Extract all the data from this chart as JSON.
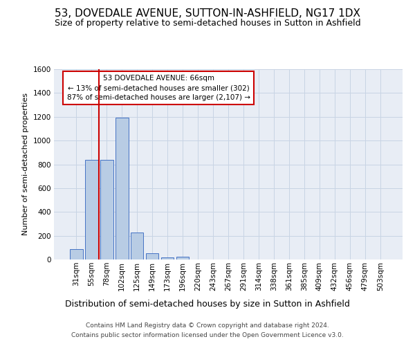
{
  "title": "53, DOVEDALE AVENUE, SUTTON-IN-ASHFIELD, NG17 1DX",
  "subtitle": "Size of property relative to semi-detached houses in Sutton in Ashfield",
  "xlabel": "Distribution of semi-detached houses by size in Sutton in Ashfield",
  "ylabel": "Number of semi-detached properties",
  "footer_line1": "Contains HM Land Registry data © Crown copyright and database right 2024.",
  "footer_line2": "Contains public sector information licensed under the Open Government Licence v3.0.",
  "annotation_title": "53 DOVEDALE AVENUE: 66sqm",
  "annotation_line1": "← 13% of semi-detached houses are smaller (302)",
  "annotation_line2": "87% of semi-detached houses are larger (2,107) →",
  "categories": [
    "31sqm",
    "55sqm",
    "78sqm",
    "102sqm",
    "125sqm",
    "149sqm",
    "173sqm",
    "196sqm",
    "220sqm",
    "243sqm",
    "267sqm",
    "291sqm",
    "314sqm",
    "338sqm",
    "361sqm",
    "385sqm",
    "409sqm",
    "432sqm",
    "456sqm",
    "479sqm",
    "503sqm"
  ],
  "values": [
    90,
    840,
    840,
    1190,
    225,
    55,
    20,
    25,
    0,
    0,
    0,
    0,
    0,
    0,
    0,
    0,
    0,
    0,
    0,
    0,
    0
  ],
  "bar_color": "#b8cce4",
  "bar_edge_color": "#4472c4",
  "grid_color": "#c8d4e4",
  "bg_color": "#e8edf5",
  "property_line_x": 1.5,
  "property_line_color": "#cc0000",
  "ylim": [
    0,
    1600
  ],
  "yticks": [
    0,
    200,
    400,
    600,
    800,
    1000,
    1200,
    1400,
    1600
  ],
  "title_fontsize": 11,
  "subtitle_fontsize": 9,
  "ylabel_fontsize": 8,
  "tick_fontsize": 7.5,
  "annotation_fontsize": 7.5,
  "xlabel_fontsize": 9,
  "footer_fontsize": 6.5
}
